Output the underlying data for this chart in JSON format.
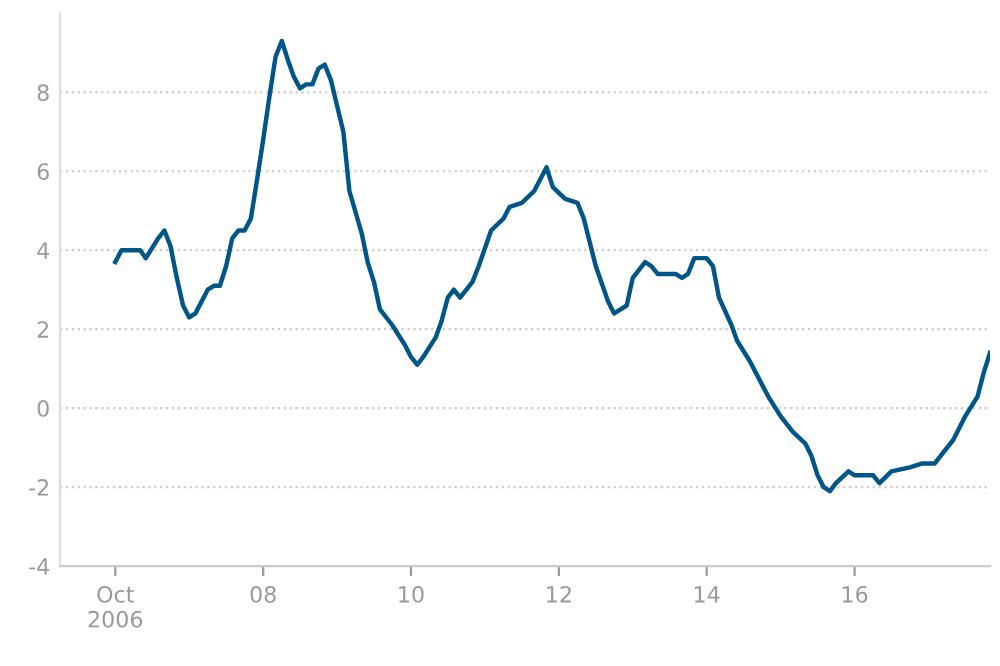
{
  "chart_data": {
    "type": "line",
    "x": [
      "2006-10",
      "2006-11",
      "2007-02",
      "2007-03",
      "2007-05",
      "2007-06",
      "2007-07",
      "2007-08",
      "2007-09",
      "2007-10",
      "2007-11",
      "2008-01",
      "2008-02",
      "2008-03",
      "2008-04",
      "2008-05",
      "2008-06",
      "2008-07",
      "2008-08",
      "2008-09",
      "2008-10",
      "2008-11",
      "2008-12",
      "2009-01",
      "2009-02",
      "2009-03",
      "2009-04",
      "2009-05",
      "2009-06",
      "2009-07",
      "2009-08",
      "2009-09",
      "2009-11",
      "2009-12",
      "2010-02",
      "2010-03",
      "2010-04",
      "2010-05",
      "2010-07",
      "2010-09",
      "2010-10",
      "2010-11",
      "2010-12",
      "2011-02",
      "2011-03",
      "2011-04",
      "2011-05",
      "2011-06",
      "2011-08",
      "2011-09",
      "2011-11",
      "2012-01",
      "2012-02",
      "2012-04",
      "2012-06",
      "2012-08",
      "2012-09",
      "2012-11",
      "2013-01",
      "2013-02",
      "2013-04",
      "2013-06",
      "2013-07",
      "2013-09",
      "2013-10",
      "2013-12",
      "2014-01",
      "2014-02",
      "2014-05",
      "2014-06",
      "2014-07",
      "2014-08",
      "2014-10",
      "2014-11",
      "2014-12",
      "2015-02",
      "2015-03",
      "2015-05",
      "2015-08",
      "2015-10",
      "2015-12",
      "2016-02",
      "2016-03",
      "2016-04",
      "2016-05",
      "2016-06",
      "2016-07",
      "2016-09",
      "2016-10",
      "2017-01",
      "2017-02",
      "2017-04",
      "2017-07",
      "2017-09",
      "2017-11",
      "2017-12",
      "2018-02",
      "2018-04",
      "2018-06",
      "2018-07",
      "2018-08"
    ],
    "series": [
      {
        "color": "#005689",
        "values": [
          3.7,
          4.0,
          4.0,
          3.8,
          4.3,
          4.5,
          4.1,
          3.3,
          2.6,
          2.3,
          2.4,
          3.0,
          3.1,
          3.1,
          3.6,
          4.3,
          4.5,
          4.5,
          4.8,
          5.8,
          6.8,
          7.9,
          8.9,
          9.3,
          8.8,
          8.4,
          8.1,
          8.2,
          8.2,
          8.6,
          8.7,
          8.3,
          7.0,
          5.5,
          4.4,
          3.7,
          3.2,
          2.5,
          2.1,
          1.6,
          1.3,
          1.1,
          1.3,
          1.8,
          2.2,
          2.8,
          3.0,
          2.8,
          3.2,
          3.6,
          4.5,
          4.8,
          5.1,
          5.2,
          5.5,
          6.1,
          5.6,
          5.3,
          5.2,
          4.8,
          3.6,
          2.7,
          2.4,
          2.6,
          3.3,
          3.7,
          3.6,
          3.4,
          3.4,
          3.3,
          3.4,
          3.8,
          3.8,
          3.6,
          2.8,
          2.1,
          1.7,
          1.2,
          0.3,
          -0.2,
          -0.6,
          -0.9,
          -1.2,
          -1.7,
          -2.0,
          -2.1,
          -1.9,
          -1.6,
          -1.7,
          -1.7,
          -1.9,
          -1.6,
          -1.5,
          -1.4,
          -1.4,
          -1.2,
          -0.8,
          -0.2,
          0.3,
          0.9,
          1.4
        ]
      }
    ],
    "xlim": [
      "2006-01",
      "2018-08"
    ],
    "xticks": [
      {
        "value": "2006-10",
        "label": "Oct\n2006"
      },
      {
        "value": "2008-10",
        "label": "08"
      },
      {
        "value": "2010-10",
        "label": "10"
      },
      {
        "value": "2012-10",
        "label": "12"
      },
      {
        "value": "2014-10",
        "label": "14"
      },
      {
        "value": "2016-10",
        "label": "16"
      }
    ],
    "ylim": [
      -4,
      10
    ],
    "yticks": [
      -4,
      -2,
      0,
      2,
      4,
      6,
      8
    ],
    "grid": "y",
    "marker": "none",
    "line_style": "solid"
  }
}
